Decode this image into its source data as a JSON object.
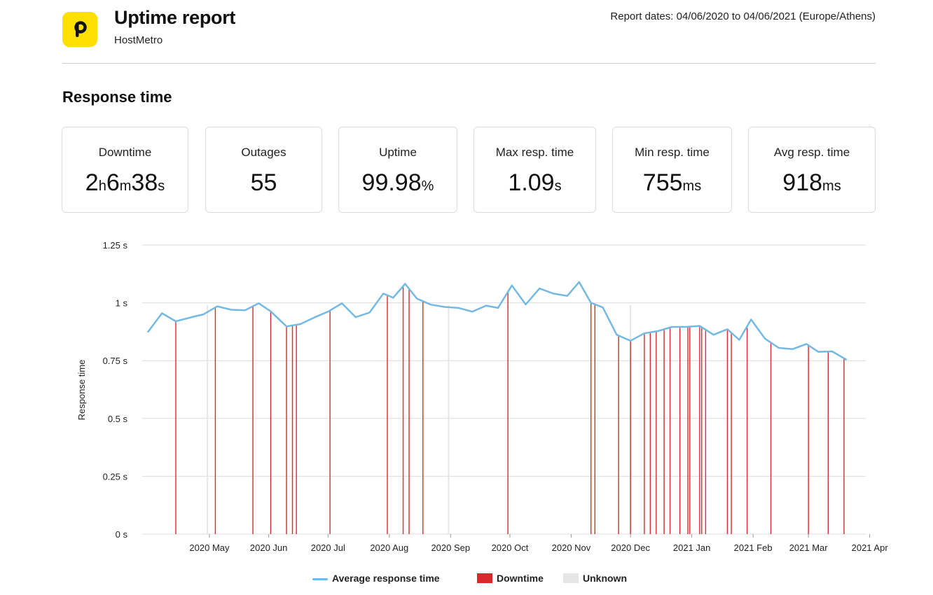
{
  "header": {
    "logo_letter": "p",
    "title": "Uptime report",
    "subtitle": "HostMetro",
    "report_dates": "Report dates: 04/06/2020 to 04/06/2021 (Europe/Athens)"
  },
  "section_title": "Response time",
  "stats": {
    "downtime": {
      "label": "Downtime",
      "h": "2",
      "h_unit": "h",
      "m": "6",
      "m_unit": "m",
      "s": "38",
      "s_unit": "s"
    },
    "outages": {
      "label": "Outages",
      "value": "55"
    },
    "uptime": {
      "label": "Uptime",
      "value": "99.98",
      "unit": "%"
    },
    "max_resp": {
      "label": "Max resp. time",
      "value": "1.09",
      "unit": "s"
    },
    "min_resp": {
      "label": "Min resp. time",
      "value": "755",
      "unit": "ms"
    },
    "avg_resp": {
      "label": "Avg resp. time",
      "value": "918",
      "unit": "ms"
    }
  },
  "colors": {
    "line": "#74b9e3",
    "downtime": "#d92b2b",
    "unknown": "#e6e6e6",
    "grid": "#dcdcdc",
    "accent_logo": "#ffe000"
  },
  "chart_data": {
    "type": "line",
    "ylabel": "Response time",
    "xlabel": "",
    "ylim": [
      0,
      1.25
    ],
    "y_ticks": [
      {
        "value": 0,
        "label": "0 s"
      },
      {
        "value": 0.25,
        "label": "0.25 s"
      },
      {
        "value": 0.5,
        "label": "0.5 s"
      },
      {
        "value": 0.75,
        "label": "0.75 s"
      },
      {
        "value": 1,
        "label": "1 s"
      },
      {
        "value": 1.25,
        "label": "1.25 s"
      }
    ],
    "xlim_days": [
      -9,
      357
    ],
    "x_ticks": [
      {
        "day": 25,
        "label": "2020 May"
      },
      {
        "day": 55,
        "label": "2020 Jun"
      },
      {
        "day": 85,
        "label": "2020 Jul"
      },
      {
        "day": 116,
        "label": "2020 Aug"
      },
      {
        "day": 147,
        "label": "2020 Sep"
      },
      {
        "day": 177,
        "label": "2020 Oct"
      },
      {
        "day": 208,
        "label": "2020 Nov"
      },
      {
        "day": 238,
        "label": "2020 Dec"
      },
      {
        "day": 269,
        "label": "2021 Jan"
      },
      {
        "day": 300,
        "label": "2021 Feb"
      },
      {
        "day": 328,
        "label": "2021 Mar"
      },
      {
        "day": 359,
        "label": "2021 Apr"
      }
    ],
    "series": [
      {
        "name": "Average response time",
        "points": [
          [
            -6,
            0.875
          ],
          [
            1,
            0.955
          ],
          [
            8,
            0.92
          ],
          [
            17,
            0.94
          ],
          [
            22,
            0.95
          ],
          [
            29,
            0.985
          ],
          [
            36,
            0.97
          ],
          [
            43,
            0.968
          ],
          [
            50,
            0.998
          ],
          [
            56,
            0.963
          ],
          [
            64,
            0.898
          ],
          [
            71,
            0.908
          ],
          [
            79,
            0.94
          ],
          [
            85,
            0.962
          ],
          [
            92,
            0.998
          ],
          [
            99,
            0.938
          ],
          [
            106,
            0.958
          ],
          [
            113,
            1.04
          ],
          [
            118,
            1.022
          ],
          [
            124,
            1.082
          ],
          [
            130,
            1.018
          ],
          [
            137,
            0.992
          ],
          [
            144,
            0.982
          ],
          [
            151,
            0.978
          ],
          [
            158,
            0.962
          ],
          [
            165,
            0.988
          ],
          [
            171,
            0.978
          ],
          [
            178,
            1.075
          ],
          [
            185,
            0.993
          ],
          [
            192,
            1.062
          ],
          [
            199,
            1.04
          ],
          [
            206,
            1.03
          ],
          [
            212,
            1.09
          ],
          [
            218,
            1.0
          ],
          [
            224,
            0.98
          ],
          [
            231,
            0.862
          ],
          [
            238,
            0.836
          ],
          [
            245,
            0.868
          ],
          [
            252,
            0.878
          ],
          [
            259,
            0.896
          ],
          [
            266,
            0.896
          ],
          [
            273,
            0.9
          ],
          [
            280,
            0.862
          ],
          [
            287,
            0.886
          ],
          [
            293,
            0.84
          ],
          [
            299,
            0.928
          ],
          [
            306,
            0.845
          ],
          [
            313,
            0.805
          ],
          [
            320,
            0.8
          ],
          [
            327,
            0.822
          ],
          [
            333,
            0.788
          ],
          [
            340,
            0.79
          ],
          [
            347,
            0.755
          ]
        ]
      }
    ],
    "downtime_days": [
      8,
      28,
      47,
      56,
      64,
      67,
      69,
      86,
      115,
      123,
      126,
      133,
      176,
      218,
      220,
      232,
      238,
      245,
      248,
      251,
      255,
      258,
      263,
      267,
      268,
      273,
      274,
      276,
      287,
      289,
      297,
      309,
      328,
      338,
      346
    ],
    "unknown_days": [
      24,
      146,
      238
    ],
    "legend": {
      "line_label": "Average response time",
      "downtime_label": "Downtime",
      "unknown_label": "Unknown"
    }
  }
}
